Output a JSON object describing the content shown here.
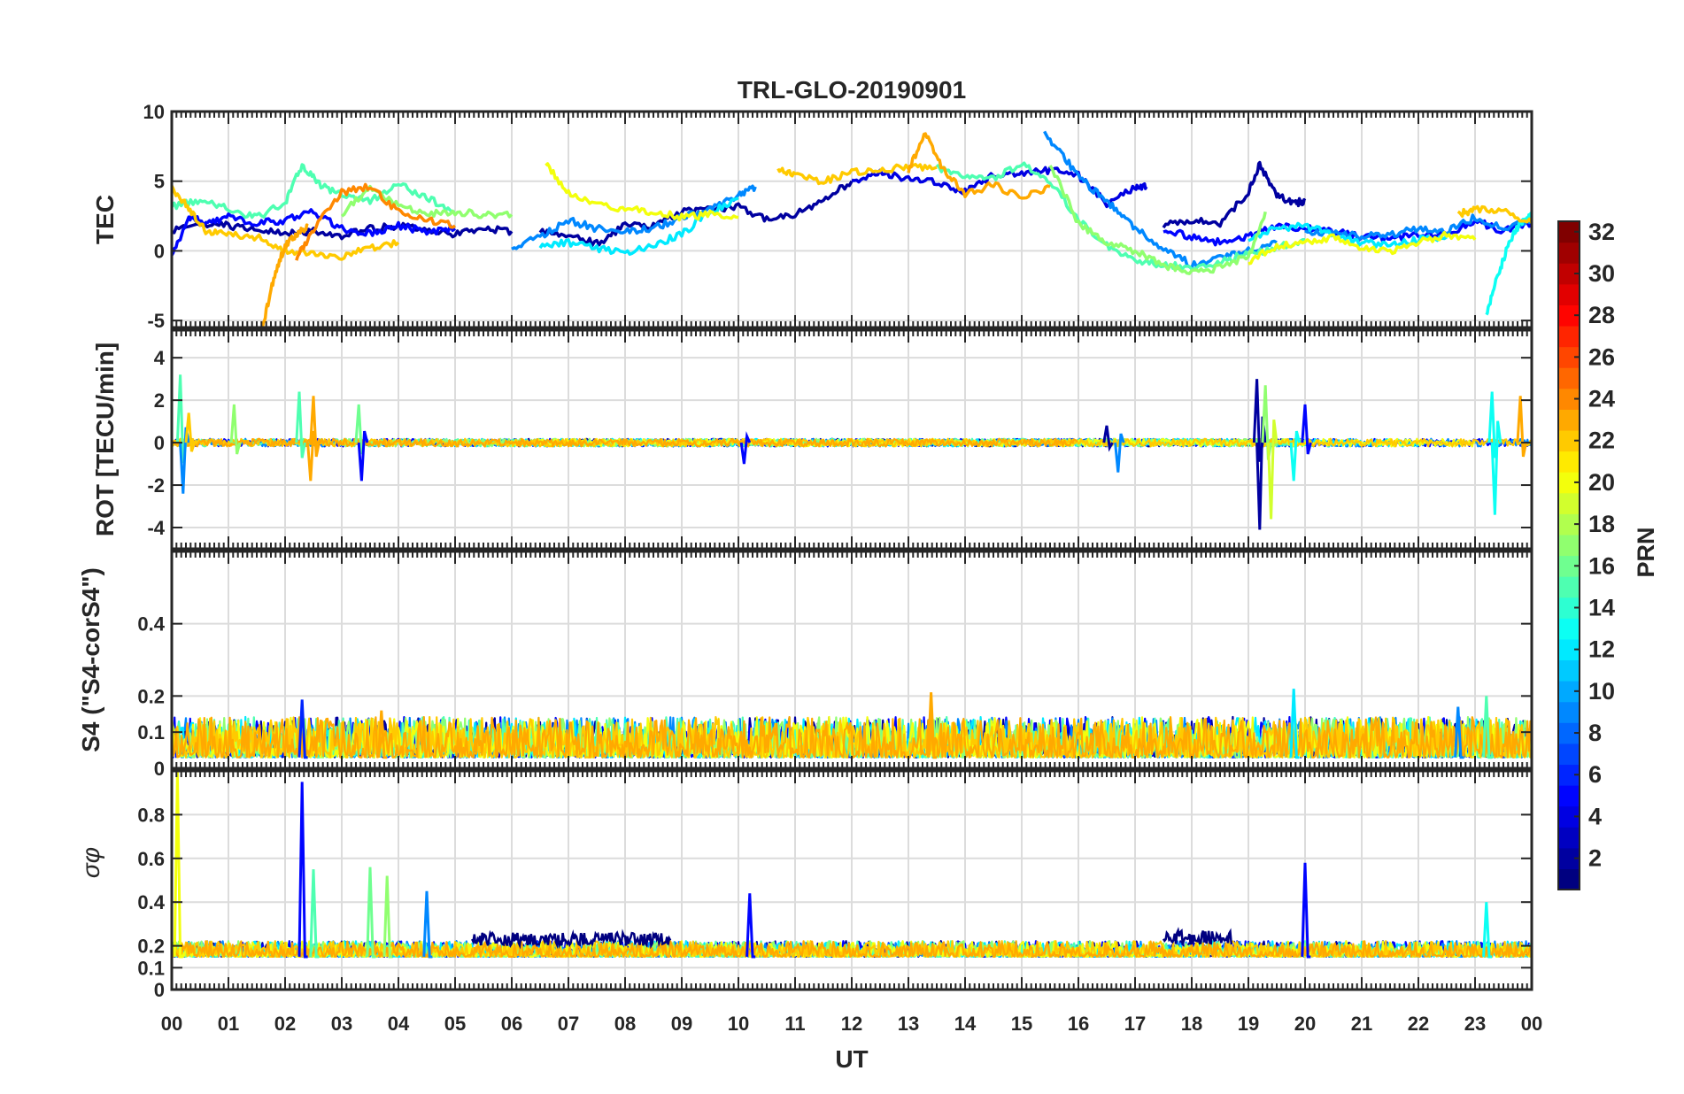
{
  "chart_data": {
    "type": "line",
    "title": "TRL-GLO-20190901",
    "xlabel": "UT",
    "x_tick_labels": [
      "00",
      "01",
      "02",
      "03",
      "04",
      "05",
      "06",
      "07",
      "08",
      "09",
      "10",
      "11",
      "12",
      "13",
      "14",
      "15",
      "16",
      "17",
      "18",
      "19",
      "20",
      "21",
      "22",
      "23",
      "00"
    ],
    "xlim": [
      0,
      24
    ],
    "grid": true,
    "panels": [
      {
        "id": "tec",
        "ylabel": "TEC",
        "ylim": [
          -5.5,
          10
        ],
        "yticks": [
          10,
          5,
          0,
          -5
        ],
        "ytick_labels": [
          "10",
          "5",
          "0",
          "-5"
        ],
        "series": [
          {
            "prn": 2,
            "x": [
              0,
              0.5,
              1,
              1.5,
              2,
              2.5,
              3,
              3.5,
              4,
              4.5,
              5,
              5.5,
              6
            ],
            "y": [
              1.5,
              2.0,
              1.8,
              1.6,
              1.2,
              1.4,
              1.1,
              1.6,
              1.8,
              1.5,
              1.2,
              1.6,
              1.4
            ]
          },
          {
            "prn": 2,
            "x": [
              6.5,
              7,
              7.5,
              8,
              8.5,
              9,
              9.5,
              10,
              10.5,
              11,
              11.5,
              12
            ],
            "y": [
              1.4,
              1.2,
              0.5,
              1.8,
              1.8,
              2.8,
              3.0,
              3.2,
              2.2,
              2.6,
              3.6,
              5.0
            ]
          },
          {
            "prn": 2,
            "x": [
              17.5,
              18,
              18.5,
              19,
              19.2,
              19.5,
              19.8,
              20
            ],
            "y": [
              1.8,
              2.2,
              2.0,
              4.2,
              6.2,
              4.0,
              3.4,
              3.6
            ]
          },
          {
            "prn": 4,
            "x": [
              12,
              12.5,
              13,
              13.5,
              14,
              14.5,
              15,
              15.5,
              16,
              16.5,
              17,
              17.2
            ],
            "y": [
              5.0,
              5.6,
              5.2,
              5.0,
              4.2,
              5.4,
              5.6,
              5.8,
              5.4,
              3.4,
              4.6,
              4.6
            ]
          },
          {
            "prn": 5,
            "x": [
              0,
              0.3,
              0.6,
              1,
              1.5,
              2,
              2.5,
              3,
              3.5,
              4,
              4.5,
              5
            ],
            "y": [
              -0.5,
              2.5,
              2.0,
              2.4,
              2.0,
              2.2,
              2.8,
              1.6,
              1.2,
              1.8,
              1.4,
              1.6
            ]
          },
          {
            "prn": 5,
            "x": [
              17.5,
              18,
              18.5,
              19,
              19.5,
              20,
              20.5,
              21,
              21.5,
              22,
              22.5,
              23,
              23.5,
              24
            ],
            "y": [
              1.6,
              1.0,
              0.6,
              1.0,
              1.8,
              1.6,
              1.4,
              1.0,
              0.8,
              1.2,
              1.2,
              2.2,
              1.4,
              2.0
            ]
          },
          {
            "prn": 9,
            "x": [
              6,
              6.5,
              7,
              7.5,
              8,
              8.5,
              9,
              9.5,
              10,
              10.3
            ],
            "y": [
              0.2,
              1.0,
              2.2,
              1.6,
              1.4,
              1.6,
              2.4,
              3.0,
              4.0,
              4.6
            ]
          },
          {
            "prn": 9,
            "x": [
              15.4,
              15.8,
              16.2,
              16.6,
              17,
              17.5,
              18,
              18.5,
              19,
              19.5
            ],
            "y": [
              8.4,
              6.4,
              4.6,
              3.2,
              1.6,
              0.2,
              -1.0,
              -0.4,
              0.0,
              0.6
            ]
          },
          {
            "prn": 9,
            "x": [
              20,
              20.5,
              21,
              21.5,
              22,
              22.5,
              23,
              23.5,
              24
            ],
            "y": [
              1.2,
              1.4,
              1.0,
              1.2,
              1.6,
              1.4,
              2.4,
              1.6,
              2.2
            ]
          },
          {
            "prn": 12,
            "x": [
              6.5,
              7,
              7.5,
              8,
              8.5,
              9,
              9.5,
              10
            ],
            "y": [
              0.4,
              0.6,
              0.2,
              -0.2,
              0.4,
              1.2,
              2.8,
              3.8
            ]
          },
          {
            "prn": 12,
            "x": [
              19,
              19.5,
              20,
              20.5,
              21,
              21.5,
              22,
              22.5
            ],
            "y": [
              0.8,
              1.6,
              1.8,
              1.2,
              0.6,
              0.4,
              0.8,
              1.0
            ]
          },
          {
            "prn": 13,
            "x": [
              23.2,
              23.4,
              23.6,
              23.8,
              24
            ],
            "y": [
              -4.6,
              -1.8,
              0.6,
              2.0,
              2.6
            ]
          },
          {
            "prn": 15,
            "x": [
              0,
              0.5,
              1,
              1.5,
              2,
              2.3,
              2.6,
              3,
              3.5,
              4,
              4.5,
              5
            ],
            "y": [
              3.2,
              3.6,
              3.0,
              2.4,
              3.4,
              6.2,
              4.8,
              4.0,
              3.6,
              4.8,
              3.8,
              2.8
            ]
          },
          {
            "prn": 15,
            "x": [
              13.5,
              14,
              14.5,
              15,
              15.5,
              16,
              16.5,
              17,
              17.5,
              18,
              18.5,
              19,
              19.5,
              20
            ],
            "y": [
              6.0,
              5.4,
              5.2,
              6.2,
              5.0,
              2.2,
              0.4,
              -0.6,
              -1.0,
              -1.2,
              -0.8,
              -0.2,
              0.2,
              0.8
            ]
          },
          {
            "prn": 17,
            "x": [
              3,
              3.5,
              4,
              4.5,
              5,
              5.5,
              6
            ],
            "y": [
              2.6,
              4.6,
              3.2,
              2.6,
              2.8,
              2.6,
              2.6
            ]
          },
          {
            "prn": 17,
            "x": [
              15.5,
              16,
              16.5,
              17,
              17.5,
              18,
              18.5,
              19,
              19.3
            ],
            "y": [
              6.2,
              2.0,
              0.6,
              0.0,
              -1.0,
              -1.6,
              -1.2,
              -0.4,
              2.8
            ]
          },
          {
            "prn": 20,
            "x": [
              6.6,
              7,
              7.5,
              8,
              8.5,
              9,
              9.5,
              10
            ],
            "y": [
              6.2,
              4.2,
              3.4,
              3.0,
              2.8,
              2.4,
              2.6,
              2.4
            ]
          },
          {
            "prn": 20,
            "x": [
              19,
              19.5,
              20,
              20.5,
              21,
              21.5,
              22,
              22.5,
              23
            ],
            "y": [
              -0.8,
              0.4,
              0.6,
              1.0,
              0.2,
              0.0,
              0.6,
              1.2,
              0.8
            ]
          },
          {
            "prn": 22,
            "x": [
              10.7,
              11,
              11.5,
              12,
              12.5,
              13,
              13.5
            ],
            "y": [
              5.8,
              5.4,
              5.0,
              5.6,
              5.8,
              6.0,
              6.0
            ]
          },
          {
            "prn": 22,
            "x": [
              0,
              0.3,
              0.6,
              1,
              1.5,
              2,
              2.5,
              3,
              3.5,
              4
            ],
            "y": [
              4.6,
              3.0,
              1.4,
              1.2,
              1.0,
              0.0,
              -0.2,
              -0.4,
              0.2,
              0.6
            ]
          },
          {
            "prn": 22,
            "x": [
              22.7,
              23,
              23.5,
              24
            ],
            "y": [
              2.6,
              3.0,
              2.8,
              2.0
            ]
          },
          {
            "prn": 23,
            "x": [
              1.6,
              1.8,
              2.0,
              2.2,
              2.4
            ],
            "y": [
              -5.5,
              -2.0,
              0.4,
              1.2,
              1.8
            ]
          },
          {
            "prn": 23,
            "x": [
              13,
              13.3,
              13.6,
              14,
              14.5,
              15,
              15.5
            ],
            "y": [
              5.8,
              8.4,
              6.0,
              4.0,
              4.8,
              3.8,
              4.6
            ]
          },
          {
            "prn": 24,
            "x": [
              2.2,
              2.5,
              3,
              3.5,
              4,
              4.5,
              5
            ],
            "y": [
              -0.6,
              1.6,
              4.2,
              4.6,
              2.8,
              2.2,
              1.8
            ]
          }
        ]
      },
      {
        "id": "rot",
        "ylabel": "ROT [TECU/min]",
        "ylim": [
          -5,
          5.3
        ],
        "yticks": [
          4,
          2,
          0,
          -2,
          -4
        ],
        "ytick_labels": [
          "4",
          "2",
          "0",
          "-2",
          "-4"
        ],
        "noise_amplitude": 0.18,
        "spikes": [
          {
            "prn": 15,
            "t": 0.15,
            "v": 3.2
          },
          {
            "prn": 9,
            "t": 0.2,
            "v": -2.4
          },
          {
            "prn": 22,
            "t": 0.3,
            "v": 1.4
          },
          {
            "prn": 17,
            "t": 1.1,
            "v": 1.8
          },
          {
            "prn": 15,
            "t": 2.25,
            "v": 2.4
          },
          {
            "prn": 23,
            "t": 2.45,
            "v": -1.8
          },
          {
            "prn": 23,
            "t": 2.5,
            "v": 2.2
          },
          {
            "prn": 16,
            "t": 3.3,
            "v": 1.8
          },
          {
            "prn": 5,
            "t": 3.35,
            "v": -1.8
          },
          {
            "prn": 2,
            "t": 16.5,
            "v": 0.8
          },
          {
            "prn": 9,
            "t": 16.7,
            "v": -1.4
          },
          {
            "prn": 5,
            "t": 10.1,
            "v": -1.0
          },
          {
            "prn": 2,
            "t": 19.15,
            "v": 3.0
          },
          {
            "prn": 2,
            "t": 19.2,
            "v": -4.1
          },
          {
            "prn": 17,
            "t": 19.3,
            "v": 2.7
          },
          {
            "prn": 19,
            "t": 19.4,
            "v": -3.6
          },
          {
            "prn": 13,
            "t": 19.8,
            "v": -1.8
          },
          {
            "prn": 5,
            "t": 20.0,
            "v": 1.8
          },
          {
            "prn": 13,
            "t": 23.3,
            "v": 2.4
          },
          {
            "prn": 13,
            "t": 23.35,
            "v": -3.4
          },
          {
            "prn": 23,
            "t": 23.8,
            "v": 2.2
          }
        ]
      },
      {
        "id": "s4",
        "ylabel": "S4 (\"S4-corS4\")",
        "ylim": [
          0,
          0.6
        ],
        "yticks": [
          0.4,
          0.2,
          0.1,
          0
        ],
        "ytick_labels": [
          "0.4",
          "0.2",
          "0.1",
          "0"
        ],
        "baseline": 0.03,
        "noise_amplitude": 0.07,
        "spikes": [
          {
            "prn": 6,
            "t": 2.3,
            "v": 0.19
          },
          {
            "prn": 23,
            "t": 3.7,
            "v": 0.16
          },
          {
            "prn": 23,
            "t": 13.4,
            "v": 0.21
          },
          {
            "prn": 12,
            "t": 19.8,
            "v": 0.22
          },
          {
            "prn": 9,
            "t": 22.7,
            "v": 0.17
          },
          {
            "prn": 15,
            "t": 23.2,
            "v": 0.2
          }
        ]
      },
      {
        "id": "sigma",
        "ylabel": "σφ",
        "ylim": [
          0,
          1
        ],
        "yticks": [
          1,
          0.8,
          0.6,
          0.4,
          0.2,
          0.1,
          0
        ],
        "ytick_labels": [
          "",
          "0.8",
          "0.6",
          "0.4",
          "0.2",
          "0.1",
          "0"
        ],
        "baseline": 0.15,
        "noise_amplitude": 0.06,
        "spikes": [
          {
            "prn": 20,
            "t": 0.1,
            "v": 1.0
          },
          {
            "prn": 5,
            "t": 2.3,
            "v": 0.95
          },
          {
            "prn": 15,
            "t": 2.5,
            "v": 0.55
          },
          {
            "prn": 16,
            "t": 3.5,
            "v": 0.56
          },
          {
            "prn": 17,
            "t": 3.8,
            "v": 0.52
          },
          {
            "prn": 9,
            "t": 4.5,
            "v": 0.45
          },
          {
            "prn": 5,
            "t": 10.2,
            "v": 0.44
          },
          {
            "prn": 5,
            "t": 20.0,
            "v": 0.58
          },
          {
            "prn": 13,
            "t": 23.2,
            "v": 0.4
          }
        ],
        "bands": [
          {
            "prn": 1,
            "t0": 5.3,
            "t1": 8.8,
            "v": 0.25
          },
          {
            "prn": 1,
            "t0": 17.5,
            "t1": 18.7,
            "v": 0.26
          }
        ]
      }
    ],
    "colorbar": {
      "label": "PRN",
      "colormap": "jet",
      "range": [
        1,
        32
      ],
      "ticks": [
        2,
        4,
        6,
        8,
        10,
        12,
        14,
        16,
        18,
        20,
        22,
        24,
        26,
        28,
        30,
        32
      ],
      "tick_labels": [
        "2",
        "4",
        "6",
        "8",
        "10",
        "12",
        "14",
        "16",
        "18",
        "20",
        "22",
        "24",
        "26",
        "28",
        "30",
        "32"
      ]
    }
  }
}
